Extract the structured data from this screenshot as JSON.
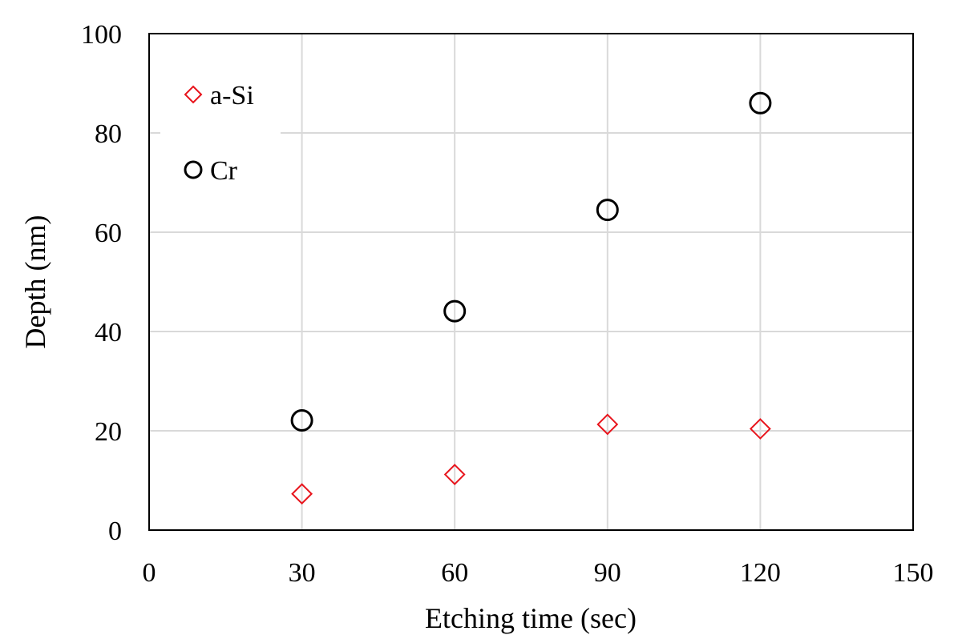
{
  "chart_data": {
    "type": "scatter",
    "title": "",
    "xlabel": "Etching time (sec)",
    "ylabel": "Depth (nm)",
    "xlim": [
      0,
      150
    ],
    "ylim": [
      0,
      100
    ],
    "xticks": [
      0,
      30,
      60,
      90,
      120,
      150
    ],
    "yticks": [
      0,
      20,
      40,
      60,
      80,
      100
    ],
    "grid": true,
    "legend_position": "top-left",
    "series": [
      {
        "name": "a-Si",
        "marker": "diamond",
        "color": "#e8141c",
        "x": [
          30,
          60,
          90,
          120
        ],
        "y": [
          7.3,
          11.2,
          21.3,
          20.4
        ]
      },
      {
        "name": "Cr",
        "marker": "circle",
        "color": "#000000",
        "x": [
          30,
          60,
          90,
          120
        ],
        "y": [
          22.1,
          44.1,
          64.5,
          86.0
        ]
      }
    ]
  }
}
